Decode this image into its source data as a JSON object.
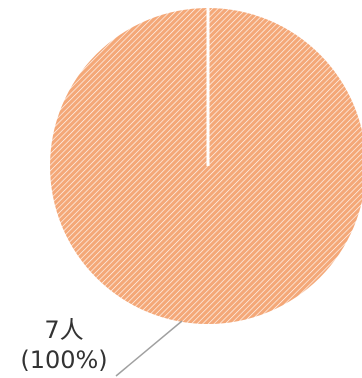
{
  "chart_data": {
    "type": "pie",
    "slices": [
      {
        "value": 7,
        "percent": 100,
        "count_label": "7人",
        "percent_label": "(100%)",
        "color": "#f4a878",
        "hatch_color": "#ffffff"
      }
    ],
    "total": 7,
    "start_angle_deg": 0,
    "direction": "clockwise",
    "slice_separator_color": "#ffffff",
    "leader_line_color": "#a0a0a0"
  }
}
